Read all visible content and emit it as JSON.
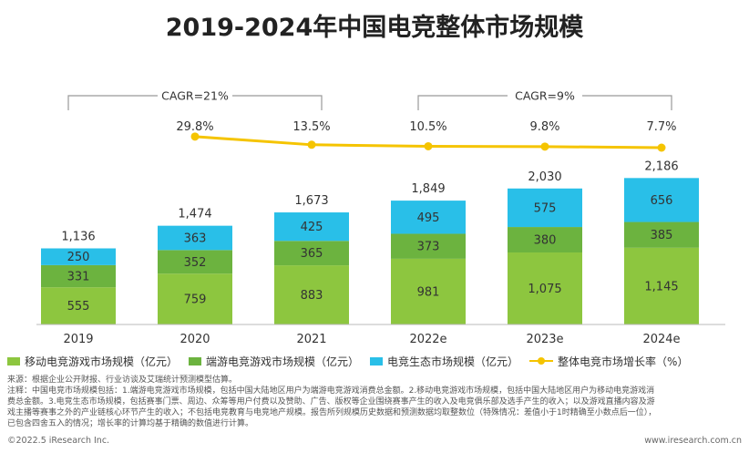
{
  "chart_data": {
    "type": "bar",
    "title": "2019-2024年中国电竞整体市场规模",
    "categories": [
      "2019",
      "2020",
      "2021",
      "2022e",
      "2023e",
      "2024e"
    ],
    "series": [
      {
        "name": "移动电竞游戏市场规模（亿元）",
        "color": "#8dc63f",
        "values": [
          555,
          759,
          883,
          981,
          1075,
          1145
        ],
        "labels": [
          "555",
          "759",
          "883",
          "981",
          "1,075",
          "1,145"
        ]
      },
      {
        "name": "端游电竞游戏市场规模（亿元）",
        "color": "#6cb33f",
        "values": [
          331,
          352,
          365,
          373,
          380,
          385
        ],
        "labels": [
          "331",
          "352",
          "365",
          "373",
          "380",
          "385"
        ]
      },
      {
        "name": "电竞生态市场规模（亿元）",
        "color": "#29bfe8",
        "values": [
          250,
          363,
          425,
          495,
          575,
          656
        ],
        "labels": [
          "250",
          "363",
          "425",
          "495",
          "575",
          "656"
        ]
      }
    ],
    "totals": [
      1136,
      1474,
      1673,
      1849,
      2030,
      2186
    ],
    "total_labels": [
      "1,136",
      "1,474",
      "1,673",
      "1,849",
      "2,030",
      "2,186"
    ],
    "line_series": {
      "name": "整体电竞市场增长率（%）",
      "color": "#f5c400",
      "x": [
        "2020",
        "2021",
        "2022e",
        "2023e",
        "2024e"
      ],
      "values": [
        29.8,
        13.5,
        10.5,
        9.8,
        7.7
      ],
      "labels": [
        "29.8%",
        "13.5%",
        "10.5%",
        "9.8%",
        "7.7%"
      ]
    },
    "annotations": [
      {
        "text": "CAGR=21%",
        "from": "2019",
        "to": "2021"
      },
      {
        "text": "CAGR=9%",
        "from": "2022e",
        "to": "2024e"
      }
    ],
    "ylim": [
      0,
      2400
    ],
    "grid": false,
    "legend_position": "bottom"
  },
  "notes": {
    "source": "来源：根据企业公开财报、行业访谈及艾瑞统计预测模型估算。",
    "note_lines": [
      "注释：中国电竞市场规模包括：1.端游电竞游戏市场规模，包括中国大陆地区用户为端游电竞游戏消费总金额。2.移动电竞游戏市场规模，包括中国大陆地区用户为移动电竞游戏消",
      "费总金额。3.电竞生态市场规模，包括赛事门票、周边、众筹等用户付费以及赞助、广告、版权等企业围绕赛事产生的收入及电竞俱乐部及选手产生的收入；以及游戏直播内容及游",
      "戏主播等赛事之外的产业链核心环节产生的收入；不包括电竞教育与电竞地产规模。报告所列规模历史数据和预测数据均取整数位（特殊情况：差值小于1时精确至小数点后一位），",
      "已包含四舍五入的情况；增长率的计算均基于精确的数值进行计算。"
    ]
  },
  "footer": {
    "copyright": "©2022.5 iResearch Inc.",
    "website": "www.iresearch.com.cn"
  }
}
